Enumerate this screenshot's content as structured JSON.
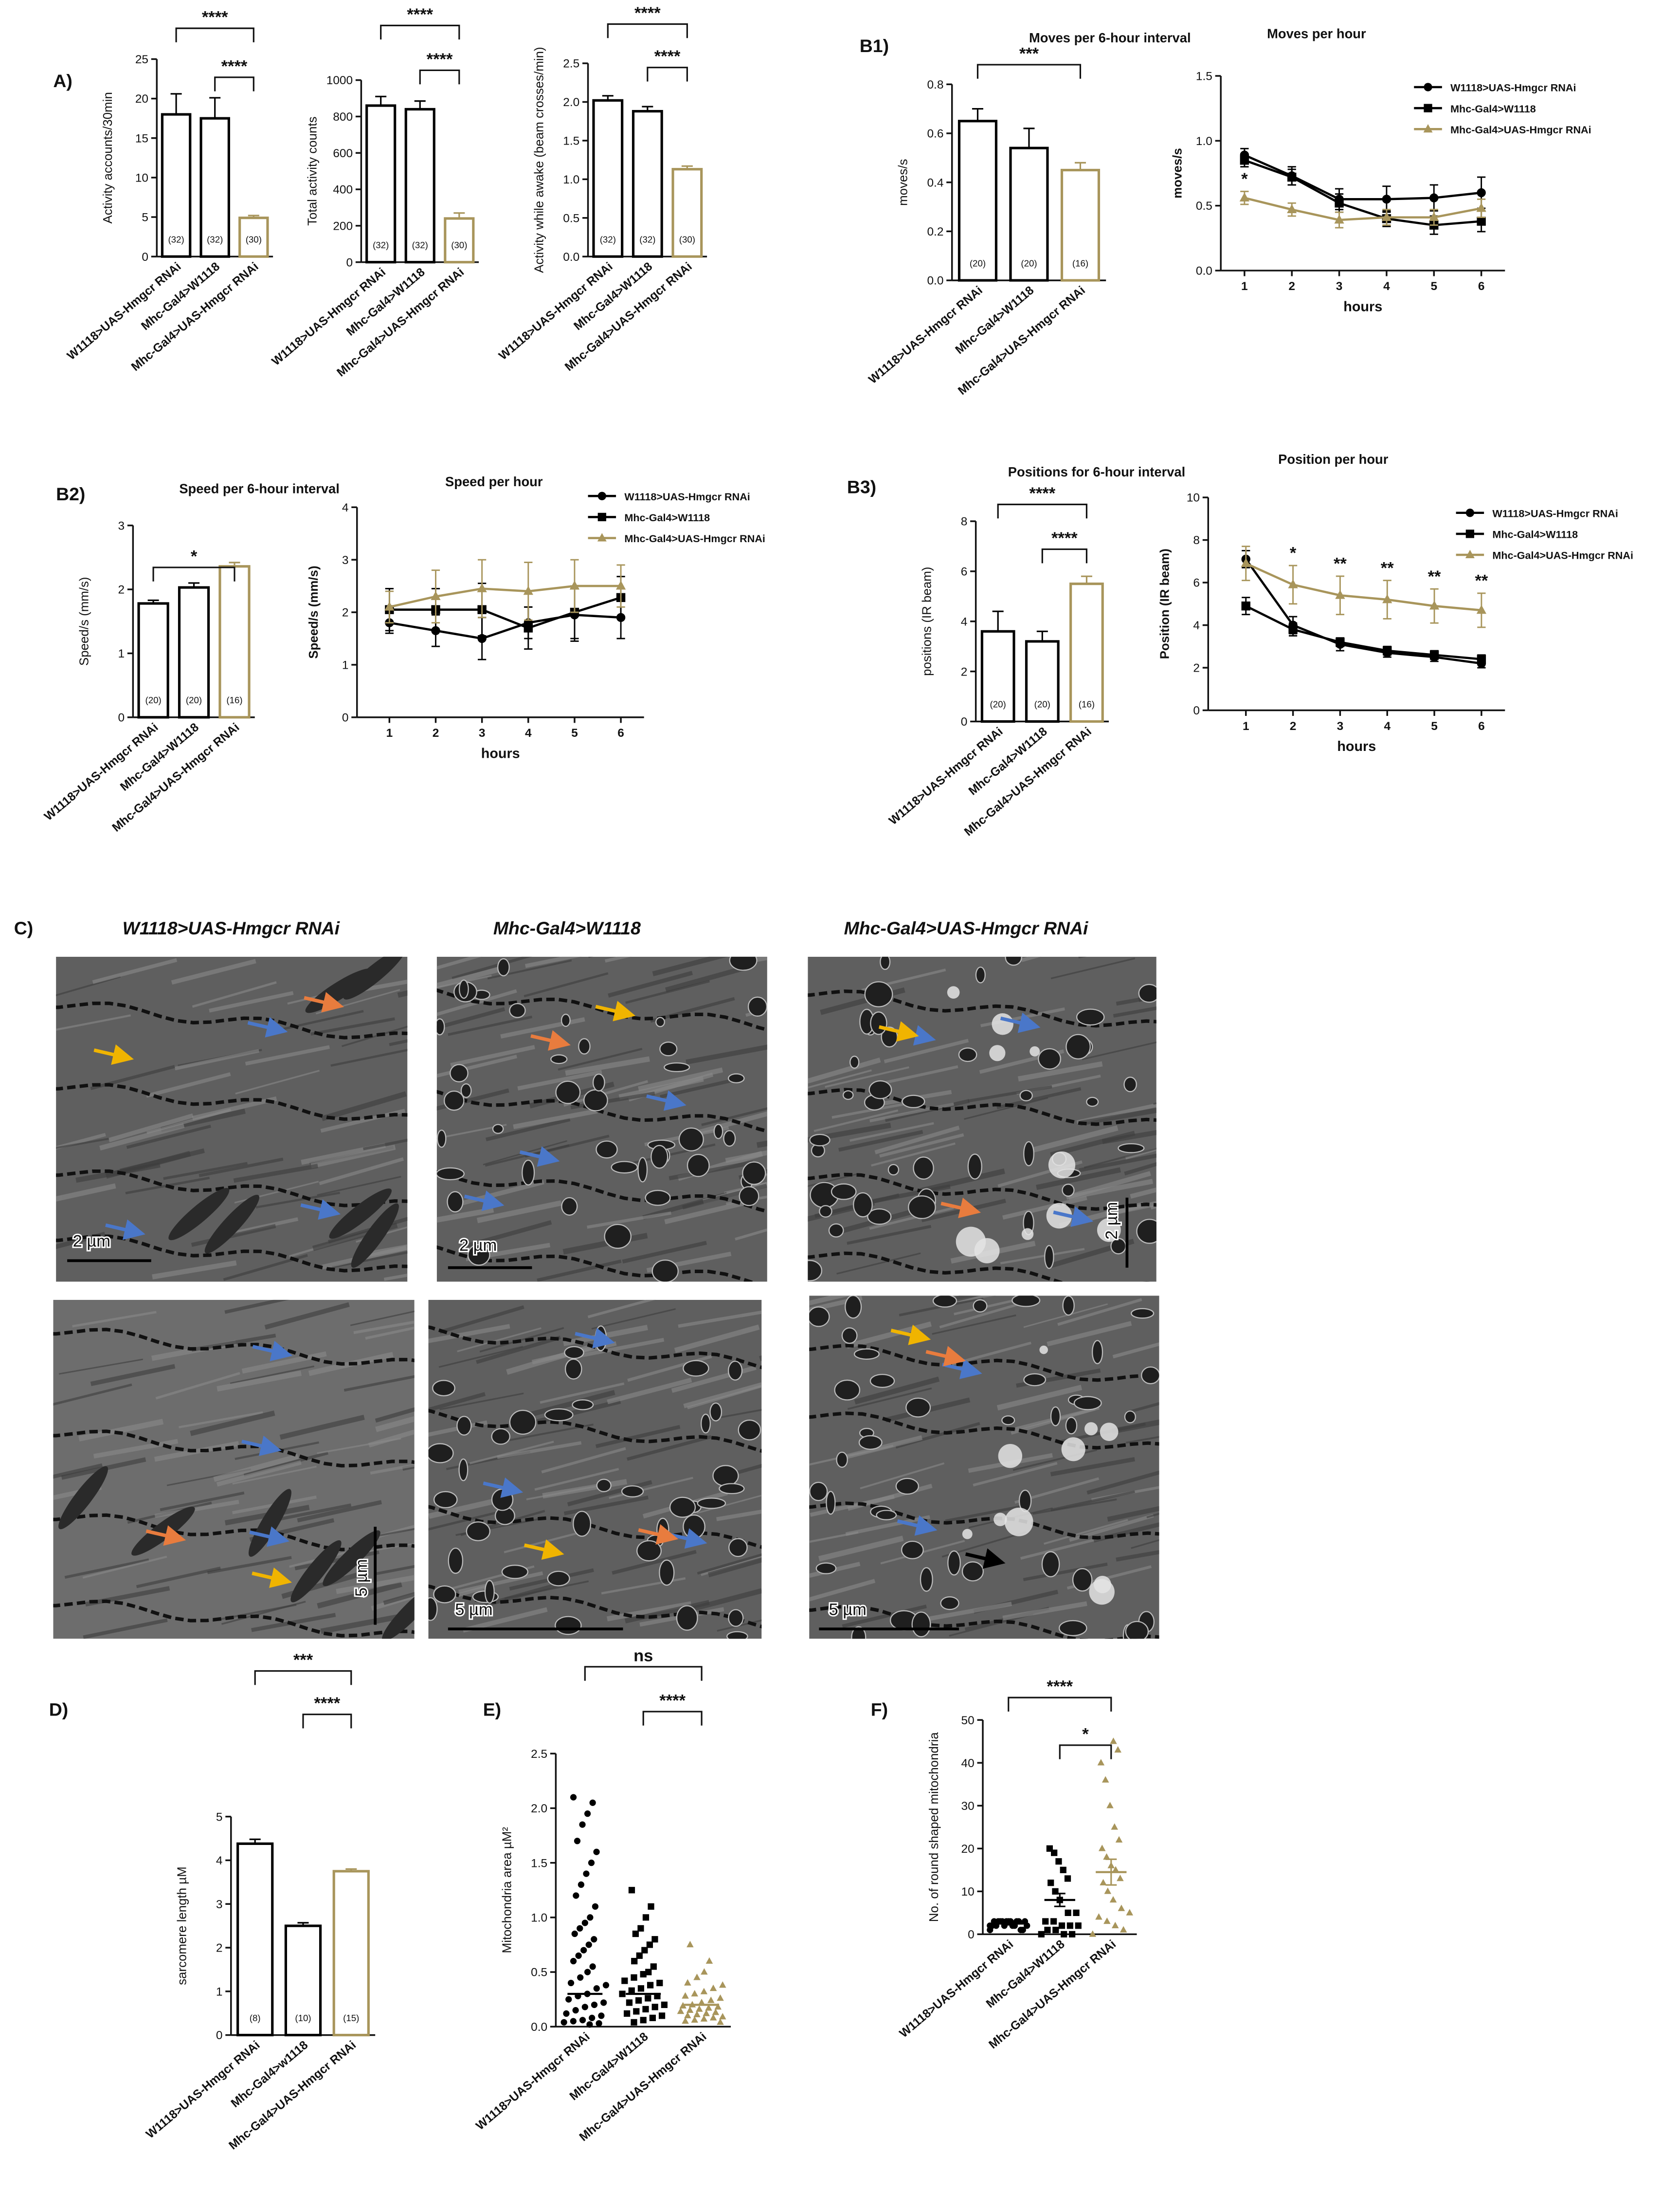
{
  "chart_data": [
    {
      "type": "bar",
      "panel": "A)",
      "ylabel": "Activity accounts/30min",
      "categories": [
        "W1118>UAS-Hmgcr RNAi",
        "Mhc-Gal4>W1118",
        "Mhc-Gal4>UAS-Hmgcr RNAi"
      ],
      "values": [
        18,
        17.5,
        4.9
      ],
      "errors": [
        2.6,
        2.6,
        0.3
      ],
      "n_labels": [
        "(32)",
        "(32)",
        "(30)"
      ],
      "colors": [
        "#000000",
        "#000000",
        "#a8955b"
      ],
      "ylim": [
        0,
        25
      ],
      "yticks": [
        0,
        5,
        10,
        15,
        20,
        25
      ],
      "significance": [
        {
          "between": [
            0,
            2
          ],
          "label": "****"
        },
        {
          "between": [
            1,
            2
          ],
          "label": "****"
        }
      ]
    },
    {
      "type": "bar",
      "ylabel": "Total activity counts",
      "categories": [
        "W1118>UAS-Hmgcr RNAi",
        "Mhc-Gal4>W1118",
        "Mhc-Gal4>UAS-Hmgcr RNAi"
      ],
      "values": [
        860,
        840,
        240
      ],
      "errors": [
        50,
        45,
        30
      ],
      "n_labels": [
        "(32)",
        "(32)",
        "(30)"
      ],
      "colors": [
        "#000000",
        "#000000",
        "#a8955b"
      ],
      "ylim": [
        0,
        1000
      ],
      "yticks": [
        0,
        200,
        400,
        600,
        800,
        1000
      ],
      "significance": [
        {
          "between": [
            0,
            2
          ],
          "label": "****"
        },
        {
          "between": [
            1,
            2
          ],
          "label": "****"
        }
      ]
    },
    {
      "type": "bar",
      "ylabel": "Activity while awake (beam crosses/min)",
      "categories": [
        "W1118>UAS-Hmgcr RNAi",
        "Mhc-Gal4>W1118",
        "Mhc-Gal4>UAS-Hmgcr RNAi"
      ],
      "values": [
        2.02,
        1.88,
        1.13
      ],
      "errors": [
        0.06,
        0.06,
        0.04
      ],
      "n_labels": [
        "(32)",
        "(32)",
        "(30)"
      ],
      "colors": [
        "#000000",
        "#000000",
        "#a8955b"
      ],
      "ylim": [
        0,
        2.5
      ],
      "yticks": [
        {
          "value": 0,
          "label": "0.0"
        },
        0.5,
        {
          "value": 1,
          "label": "1.0"
        },
        1.5,
        {
          "value": 2,
          "label": "2.0"
        },
        2.5
      ],
      "significance": [
        {
          "between": [
            0,
            2
          ],
          "label": "****"
        },
        {
          "between": [
            1,
            2
          ],
          "label": "****"
        }
      ]
    },
    {
      "type": "bar",
      "panel": "B1)",
      "title": "Moves per 6-hour interval",
      "ylabel": "moves/s",
      "categories": [
        "W1118>UAS-Hmgcr RNAi",
        "Mhc-Gal4>W1118",
        "Mhc-Gal4>UAS-Hmgcr RNAi"
      ],
      "values": [
        0.65,
        0.54,
        0.45
      ],
      "errors": [
        0.05,
        0.08,
        0.03
      ],
      "n_labels": [
        "(20)",
        "(20)",
        "(16)"
      ],
      "colors": [
        "#000000",
        "#000000",
        "#a8955b"
      ],
      "ylim": [
        0,
        0.8
      ],
      "yticks": [
        {
          "value": 0,
          "label": "0.0"
        },
        0.2,
        0.4,
        0.6,
        0.8
      ],
      "significance": [
        {
          "between": [
            0,
            2
          ],
          "label": "***"
        }
      ]
    },
    {
      "type": "line",
      "title": "Moves per hour",
      "xlabel": "hours",
      "ylabel": "moves/s",
      "x": [
        1,
        2,
        3,
        4,
        5,
        6
      ],
      "xlim": [
        0.5,
        6.5
      ],
      "xticks": [
        1,
        2,
        3,
        4,
        5,
        6
      ],
      "ylim": [
        0,
        1.5
      ],
      "yticks": [
        {
          "value": 0,
          "label": "0.0"
        },
        0.5,
        {
          "value": 1,
          "label": "1.0"
        },
        1.5
      ],
      "legend": "upper right",
      "series": [
        {
          "name": "W1118>UAS-Hmgcr RNAi",
          "color": "#000000",
          "marker": "circle",
          "values": [
            0.89,
            0.73,
            0.55,
            0.55,
            0.56,
            0.6
          ],
          "errors": [
            0.05,
            0.07,
            0.08,
            0.1,
            0.1,
            0.12
          ]
        },
        {
          "name": "Mhc-Gal4>W1118",
          "color": "#000000",
          "marker": "square",
          "values": [
            0.85,
            0.72,
            0.52,
            0.4,
            0.35,
            0.38
          ],
          "errors": [
            0.05,
            0.06,
            0.07,
            0.06,
            0.07,
            0.08
          ]
        },
        {
          "name": "Mhc-Gal4>UAS-Hmgcr RNAi",
          "color": "#a8955b",
          "marker": "triangle",
          "values": [
            0.56,
            0.47,
            0.39,
            0.41,
            0.41,
            0.48
          ],
          "errors": [
            0.05,
            0.05,
            0.06,
            0.06,
            0.06,
            0.07
          ]
        }
      ],
      "annotations": [
        {
          "x": 1,
          "text": "*"
        }
      ]
    },
    {
      "type": "bar",
      "panel": "B2)",
      "title": "Speed per 6-hour interval",
      "ylabel": "Speed/s (mm/s)",
      "categories": [
        "W1118>UAS-Hmgcr RNAi",
        "Mhc-Gal4>W1118",
        "Mhc-Gal4>UAS-Hmgcr RNAi"
      ],
      "values": [
        1.78,
        2.03,
        2.36
      ],
      "errors": [
        0.05,
        0.07,
        0.06
      ],
      "n_labels": [
        "(20)",
        "(20)",
        "(16)"
      ],
      "colors": [
        "#000000",
        "#000000",
        "#a8955b"
      ],
      "ylim": [
        0,
        3
      ],
      "yticks": [
        0,
        1,
        2,
        3
      ],
      "significance": [
        {
          "between": [
            0,
            2
          ],
          "label": "*"
        }
      ]
    },
    {
      "type": "line",
      "title": "Speed per hour",
      "xlabel": "hours",
      "ylabel": "Speed/s (mm/s)",
      "x": [
        1,
        2,
        3,
        4,
        5,
        6
      ],
      "xlim": [
        0.3,
        6.5
      ],
      "xticks": [
        1,
        2,
        3,
        4,
        5,
        6
      ],
      "ylim": [
        0,
        4
      ],
      "yticks": [
        0,
        1,
        2,
        3,
        4
      ],
      "legend": "upper right",
      "series": [
        {
          "name": "W1118>UAS-Hmgcr RNAi",
          "color": "#000000",
          "marker": "circle",
          "values": [
            1.8,
            1.65,
            1.5,
            1.8,
            1.95,
            1.9
          ],
          "errors": [
            0.2,
            0.3,
            0.4,
            0.3,
            0.5,
            0.4
          ]
        },
        {
          "name": "Mhc-Gal4>W1118",
          "color": "#000000",
          "marker": "square",
          "values": [
            2.05,
            2.05,
            2.05,
            1.7,
            2.0,
            2.28
          ],
          "errors": [
            0.4,
            0.4,
            0.5,
            0.4,
            0.5,
            0.4
          ]
        },
        {
          "name": "Mhc-Gal4>UAS-Hmgcr RNAi",
          "color": "#a8955b",
          "marker": "triangle",
          "values": [
            2.1,
            2.3,
            2.45,
            2.4,
            2.5,
            2.5
          ],
          "errors": [
            0.3,
            0.5,
            0.55,
            0.55,
            0.5,
            0.4
          ]
        }
      ]
    },
    {
      "type": "bar",
      "panel": "B3)",
      "title": "Positions for 6-hour interval",
      "ylabel": "positions (IR beam)",
      "categories": [
        "W1118>UAS-Hmgcr RNAi",
        "Mhc-Gal4>W1118",
        "Mhc-Gal4>UAS-Hmgcr RNAi"
      ],
      "values": [
        3.6,
        3.2,
        5.5
      ],
      "errors": [
        0.8,
        0.4,
        0.3
      ],
      "n_labels": [
        "(20)",
        "(20)",
        "(16)"
      ],
      "colors": [
        "#000000",
        "#000000",
        "#a8955b"
      ],
      "ylim": [
        0,
        8
      ],
      "yticks": [
        0,
        2,
        4,
        6,
        8
      ],
      "significance": [
        {
          "between": [
            0,
            2
          ],
          "label": "****"
        },
        {
          "between": [
            1,
            2
          ],
          "label": "****"
        }
      ]
    },
    {
      "type": "line",
      "title": "Position per hour",
      "xlabel": "hours",
      "ylabel": "Position (IR beam)",
      "x": [
        1,
        2,
        3,
        4,
        5,
        6
      ],
      "xlim": [
        0.2,
        6.5
      ],
      "xticks": [
        1,
        2,
        3,
        4,
        5,
        6
      ],
      "ylim": [
        0,
        10
      ],
      "yticks": [
        0,
        2,
        4,
        6,
        8,
        10
      ],
      "legend": "upper right",
      "series": [
        {
          "name": "W1118>UAS-Hmgcr RNAi",
          "color": "#000000",
          "marker": "circle",
          "values": [
            7.1,
            4.0,
            3.1,
            2.7,
            2.5,
            2.2
          ],
          "errors": [
            0.4,
            0.4,
            0.3,
            0.2,
            0.2,
            0.2
          ]
        },
        {
          "name": "Mhc-Gal4>W1118",
          "color": "#000000",
          "marker": "square",
          "values": [
            4.9,
            3.8,
            3.2,
            2.8,
            2.6,
            2.4
          ],
          "errors": [
            0.4,
            0.3,
            0.2,
            0.2,
            0.2,
            0.2
          ]
        },
        {
          "name": "Mhc-Gal4>UAS-Hmgcr RNAi",
          "color": "#a8955b",
          "marker": "triangle",
          "values": [
            6.9,
            5.9,
            5.4,
            5.2,
            4.9,
            4.7
          ],
          "errors": [
            0.8,
            0.9,
            0.9,
            0.9,
            0.8,
            0.8
          ]
        }
      ],
      "annotations": [
        {
          "x": 2,
          "text": "*"
        },
        {
          "x": 3,
          "text": "**"
        },
        {
          "x": 4,
          "text": "**"
        },
        {
          "x": 5,
          "text": "**"
        },
        {
          "x": 6,
          "text": "**"
        }
      ]
    },
    {
      "type": "bar",
      "panel": "D)",
      "ylabel": "sarcomere length µM",
      "categories": [
        "W1118>UAS-Hmgcr RNAi",
        "Mhc-Gal4>w1118",
        "Mhc-Gal4>UAS-Hmgcr RNAi"
      ],
      "values": [
        4.38,
        2.5,
        3.75
      ],
      "errors": [
        0.1,
        0.07,
        0.05
      ],
      "n_labels": [
        "(8)",
        "(10)",
        "(15)"
      ],
      "colors": [
        "#000000",
        "#000000",
        "#a8955b"
      ],
      "ylim": [
        0,
        5
      ],
      "yticks": [
        0,
        1,
        2,
        3,
        4,
        5
      ],
      "significance": [
        {
          "between": [
            0,
            2
          ],
          "label": "***"
        },
        {
          "between": [
            1,
            2
          ],
          "label": "****"
        }
      ]
    },
    {
      "type": "strip",
      "panel": "E)",
      "ylabel": "Mitochondria area µM²",
      "categories": [
        "W1118>UAS-Hmgcr RNAi",
        "Mhc-Gal4>W1118",
        "Mhc-Gal4>UAS-Hmgcr RNAi"
      ],
      "colors": [
        "#000000",
        "#000000",
        "#a8955b"
      ],
      "markers": [
        "circle",
        "square",
        "triangle"
      ],
      "points": [
        [
          2.1,
          2.05,
          1.95,
          1.85,
          1.7,
          1.6,
          1.5,
          1.4,
          1.3,
          1.2,
          1.1,
          1.0,
          0.95,
          0.9,
          0.85,
          0.8,
          0.75,
          0.7,
          0.65,
          0.6,
          0.55,
          0.5,
          0.45,
          0.4,
          0.38,
          0.35,
          0.3,
          0.28,
          0.25,
          0.22,
          0.2,
          0.18,
          0.15,
          0.12,
          0.1,
          0.08,
          0.06,
          0.05,
          0.04,
          0.03,
          0.02
        ],
        [
          1.25,
          1.1,
          1.0,
          0.9,
          0.85,
          0.8,
          0.75,
          0.7,
          0.65,
          0.6,
          0.55,
          0.5,
          0.48,
          0.45,
          0.42,
          0.4,
          0.38,
          0.35,
          0.33,
          0.3,
          0.28,
          0.26,
          0.24,
          0.22,
          0.2,
          0.18,
          0.16,
          0.14,
          0.12,
          0.1,
          0.08,
          0.06,
          0.04
        ],
        [
          0.75,
          0.6,
          0.5,
          0.45,
          0.4,
          0.38,
          0.35,
          0.32,
          0.3,
          0.28,
          0.26,
          0.24,
          0.22,
          0.2,
          0.19,
          0.18,
          0.17,
          0.16,
          0.15,
          0.14,
          0.13,
          0.12,
          0.11,
          0.1,
          0.09,
          0.08,
          0.07,
          0.06,
          0.05,
          0.04
        ]
      ],
      "means": [
        0.3,
        0.3,
        0.2
      ],
      "ylim": [
        0,
        2.5
      ],
      "yticks": [
        {
          "value": 0,
          "label": "0.0"
        },
        0.5,
        {
          "value": 1,
          "label": "1.0"
        },
        1.5,
        {
          "value": 2,
          "label": "2.0"
        },
        2.5
      ],
      "significance": [
        {
          "between": [
            0,
            2
          ],
          "label": "ns"
        },
        {
          "between": [
            1,
            2
          ],
          "label": "****"
        }
      ]
    },
    {
      "type": "strip",
      "panel": "F)",
      "ylabel": "No. of round shaped mitochondria",
      "categories": [
        "W1118>UAS-Hmgcr RNAi",
        "Mhc-Gal4>W1118",
        "Mhc-Gal4>UAS-Hmgcr RNAi"
      ],
      "colors": [
        "#000000",
        "#000000",
        "#a8955b"
      ],
      "markers": [
        "circle",
        "square",
        "triangle"
      ],
      "points": [
        [
          1,
          1,
          2,
          2,
          2,
          2,
          3,
          3,
          3,
          3,
          3,
          3,
          3,
          3,
          2,
          1,
          2,
          3,
          3,
          2
        ],
        [
          0,
          0,
          0,
          1,
          1,
          2,
          2,
          2,
          3,
          3,
          5,
          5,
          8,
          10,
          12,
          13,
          15,
          17,
          19,
          20
        ],
        [
          0,
          1,
          2,
          3,
          4,
          5,
          6,
          8,
          10,
          12,
          13,
          15,
          16,
          18,
          20,
          22,
          25,
          30,
          36,
          40,
          43,
          45
        ]
      ],
      "means": [
        2.5,
        8,
        14.5
      ],
      "sems": [
        0.3,
        1.5,
        3
      ],
      "ylim": [
        0,
        50
      ],
      "yticks": [
        0,
        10,
        20,
        30,
        40,
        50
      ],
      "significance": [
        {
          "between": [
            0,
            2
          ],
          "label": "****"
        },
        {
          "between": [
            1,
            2
          ],
          "label": "*"
        }
      ]
    }
  ],
  "micrographs": {
    "panel": "C)",
    "columns": [
      "W1118>UAS-Hmgcr RNAi",
      "Mhc-Gal4>W1118",
      "Mhc-Gal4>UAS-Hmgcr RNAi"
    ],
    "scale_bars": [
      [
        "2 µm",
        "2 µm",
        "2 µm"
      ],
      [
        "5 µm",
        "5 µm",
        "5 µm"
      ]
    ]
  }
}
